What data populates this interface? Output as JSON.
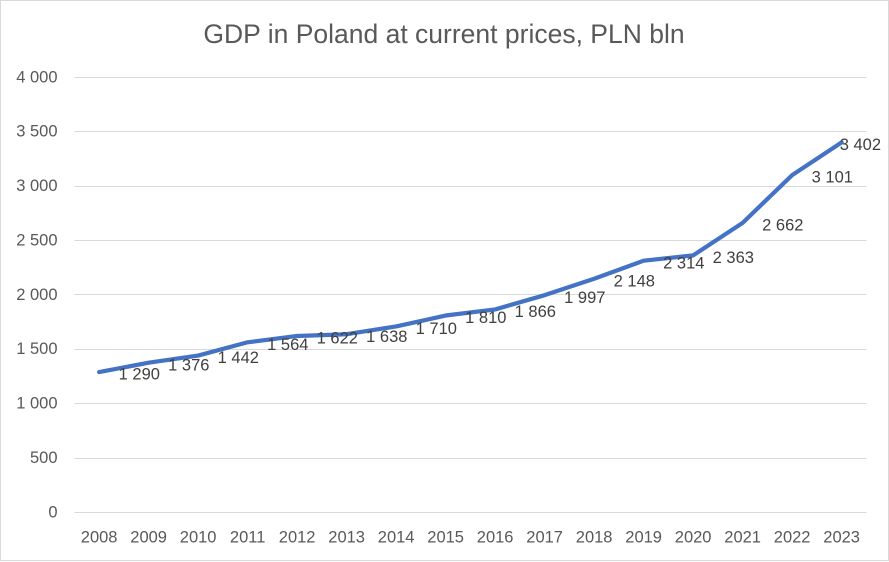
{
  "chart_data": {
    "type": "line",
    "title": "GDP in Poland at current prices, PLN bln",
    "categories": [
      "2008",
      "2009",
      "2010",
      "2011",
      "2012",
      "2013",
      "2014",
      "2015",
      "2016",
      "2017",
      "2018",
      "2019",
      "2020",
      "2021",
      "2022",
      "2023"
    ],
    "series": [
      {
        "name": "GDP at current prices, PLN bln",
        "values": [
          1290,
          1376,
          1442,
          1564,
          1622,
          1638,
          1710,
          1810,
          1866,
          1997,
          2148,
          2314,
          2363,
          2662,
          3101,
          3402
        ]
      }
    ],
    "data_labels": [
      "1 290",
      "1 376",
      "1 442",
      "1 564",
      "1 622",
      "1 638",
      "1 710",
      "1 810",
      "1 866",
      "1 997",
      "2 148",
      "2 314",
      "2 363",
      "2 662",
      "3 101",
      "3 402"
    ],
    "xlabel": "",
    "ylabel": "",
    "ylim": [
      0,
      4000
    ],
    "ytick_values": [
      0,
      500,
      1000,
      1500,
      2000,
      2500,
      3000,
      3500,
      4000
    ],
    "ytick_labels": [
      "0",
      "500",
      "1 000",
      "1 500",
      "2 000",
      "2 500",
      "3 000",
      "3 500",
      "4 000"
    ],
    "grid": "horizontal",
    "legend": "none",
    "colors": {
      "series_line": "#4472C4",
      "gridline": "#D9D9D9",
      "chart_border": "#D9D9D9",
      "axis_text": "#595959",
      "title_text": "#595959",
      "data_label_text": "#404040",
      "background": "#FFFFFF"
    }
  }
}
